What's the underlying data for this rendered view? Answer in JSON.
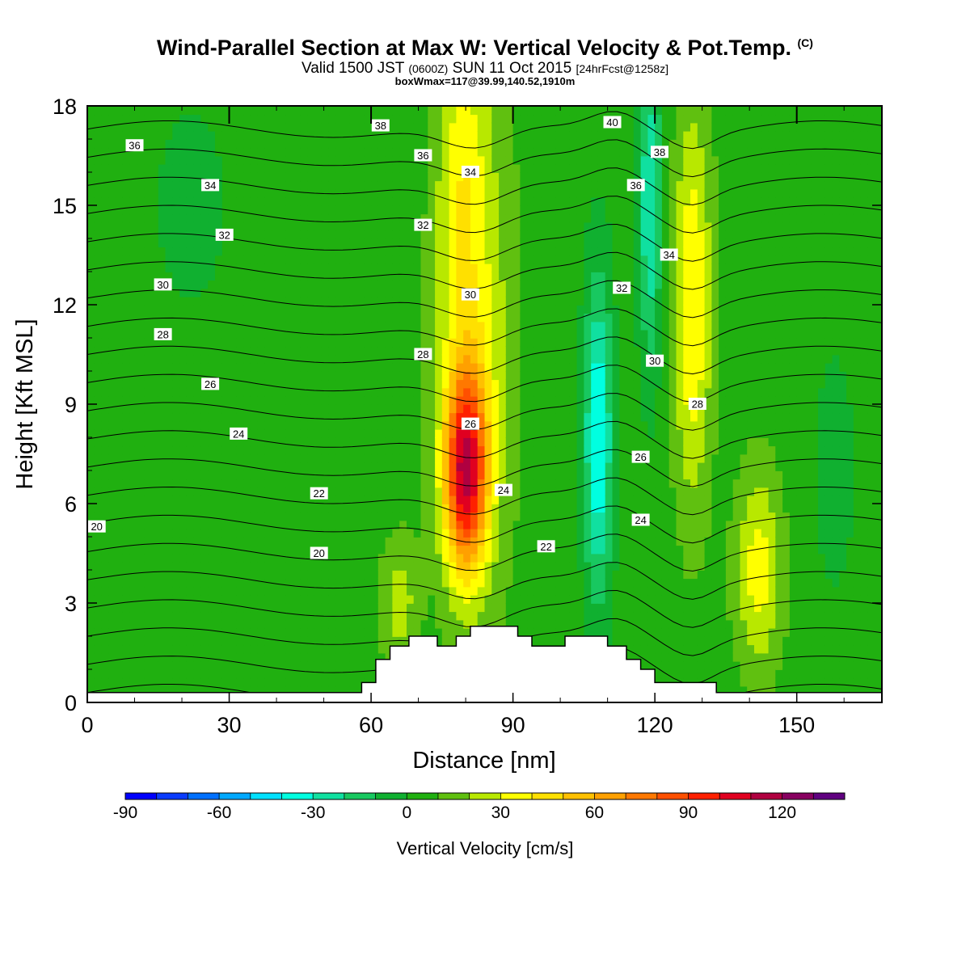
{
  "title": {
    "main": "Wind-Parallel Section at Max W: Vertical Velocity & Pot.Temp.",
    "main_mark": "(C)",
    "sub_a": "Valid 1500 JST",
    "sub_b": "(0600Z)",
    "sub_c": "SUN 11 Oct 2015",
    "sub_d": "[24hrFcst@1258z]",
    "box": "boxWmax=117@39.99,140.52,1910m"
  },
  "chart_data": {
    "type": "heatmap",
    "xlabel": "Distance [nm]",
    "ylabel": "Height [Kft MSL]",
    "xlim": [
      0,
      168
    ],
    "ylim": [
      0,
      18
    ],
    "x_ticks": [
      "0",
      "30",
      "60",
      "90",
      "120",
      "150"
    ],
    "x_tick_values": [
      0,
      30,
      60,
      90,
      120,
      150
    ],
    "y_ticks": [
      "0",
      "3",
      "6",
      "9",
      "12",
      "15",
      "18"
    ],
    "y_tick_values": [
      0,
      3,
      6,
      9,
      12,
      15,
      18
    ],
    "colorbar": {
      "title": "Vertical Velocity [cm/s]",
      "min": -90,
      "max": 140,
      "step": 10,
      "tick_labels": [
        "-90",
        "-60",
        "-30",
        "0",
        "30",
        "60",
        "90",
        "120"
      ],
      "tick_values": [
        -90,
        -60,
        -30,
        0,
        30,
        60,
        90,
        120
      ],
      "colors": [
        "#0000ff",
        "#0a3cff",
        "#0070ff",
        "#00a8ff",
        "#00e0ff",
        "#00ffe0",
        "#10e0a0",
        "#18c860",
        "#10b030",
        "#20b010",
        "#60c010",
        "#b8e800",
        "#ffff00",
        "#ffe000",
        "#ffc000",
        "#ffa000",
        "#ff7800",
        "#ff5000",
        "#ff2000",
        "#e00020",
        "#b00040",
        "#880060",
        "#600080"
      ]
    },
    "theta_contours": {
      "levels": [
        20,
        21,
        22,
        23,
        24,
        25,
        26,
        27,
        28,
        29,
        30,
        31,
        32,
        33,
        34,
        35,
        36,
        37,
        38,
        39,
        40
      ],
      "labels": [
        {
          "text": "20",
          "x": 2,
          "y": 5.3
        },
        {
          "text": "20",
          "x": 49,
          "y": 4.5
        },
        {
          "text": "22",
          "x": 49,
          "y": 6.3
        },
        {
          "text": "22",
          "x": 97,
          "y": 4.7
        },
        {
          "text": "24",
          "x": 32,
          "y": 8.1
        },
        {
          "text": "24",
          "x": 88,
          "y": 6.4
        },
        {
          "text": "24",
          "x": 117,
          "y": 5.5
        },
        {
          "text": "26",
          "x": 26,
          "y": 9.6
        },
        {
          "text": "26",
          "x": 81,
          "y": 8.4
        },
        {
          "text": "26",
          "x": 117,
          "y": 7.4
        },
        {
          "text": "28",
          "x": 16,
          "y": 11.1
        },
        {
          "text": "28",
          "x": 71,
          "y": 10.5
        },
        {
          "text": "28",
          "x": 129,
          "y": 9.0
        },
        {
          "text": "30",
          "x": 16,
          "y": 12.6
        },
        {
          "text": "30",
          "x": 81,
          "y": 12.3
        },
        {
          "text": "30",
          "x": 120,
          "y": 10.3
        },
        {
          "text": "32",
          "x": 29,
          "y": 14.1
        },
        {
          "text": "32",
          "x": 71,
          "y": 14.4
        },
        {
          "text": "32",
          "x": 113,
          "y": 12.5
        },
        {
          "text": "34",
          "x": 26,
          "y": 15.6
        },
        {
          "text": "34",
          "x": 81,
          "y": 16.0
        },
        {
          "text": "34",
          "x": 123,
          "y": 13.5
        },
        {
          "text": "36",
          "x": 10,
          "y": 16.8
        },
        {
          "text": "36",
          "x": 71,
          "y": 16.5
        },
        {
          "text": "36",
          "x": 116,
          "y": 15.6
        },
        {
          "text": "38",
          "x": 62,
          "y": 17.4
        },
        {
          "text": "38",
          "x": 121,
          "y": 16.6
        },
        {
          "text": "40",
          "x": 111,
          "y": 17.5
        }
      ]
    },
    "terrain": [
      [
        0,
        0.3
      ],
      [
        58,
        0.3
      ],
      [
        58,
        0.6
      ],
      [
        61,
        0.6
      ],
      [
        61,
        1.3
      ],
      [
        64,
        1.3
      ],
      [
        64,
        1.7
      ],
      [
        68,
        1.7
      ],
      [
        68,
        2.0
      ],
      [
        74,
        2.0
      ],
      [
        74,
        1.7
      ],
      [
        78,
        1.7
      ],
      [
        78,
        2.0
      ],
      [
        81,
        2.0
      ],
      [
        81,
        2.3
      ],
      [
        91,
        2.3
      ],
      [
        91,
        2.0
      ],
      [
        94,
        2.0
      ],
      [
        94,
        1.7
      ],
      [
        101,
        1.7
      ],
      [
        101,
        2.0
      ],
      [
        110,
        2.0
      ],
      [
        110,
        1.7
      ],
      [
        114,
        1.7
      ],
      [
        114,
        1.3
      ],
      [
        117,
        1.3
      ],
      [
        117,
        1.0
      ],
      [
        120,
        1.0
      ],
      [
        120,
        0.6
      ],
      [
        133,
        0.6
      ],
      [
        133,
        0.3
      ],
      [
        168,
        0.3
      ]
    ],
    "top_ticks_x": [
      30,
      60,
      90,
      120,
      150
    ]
  }
}
